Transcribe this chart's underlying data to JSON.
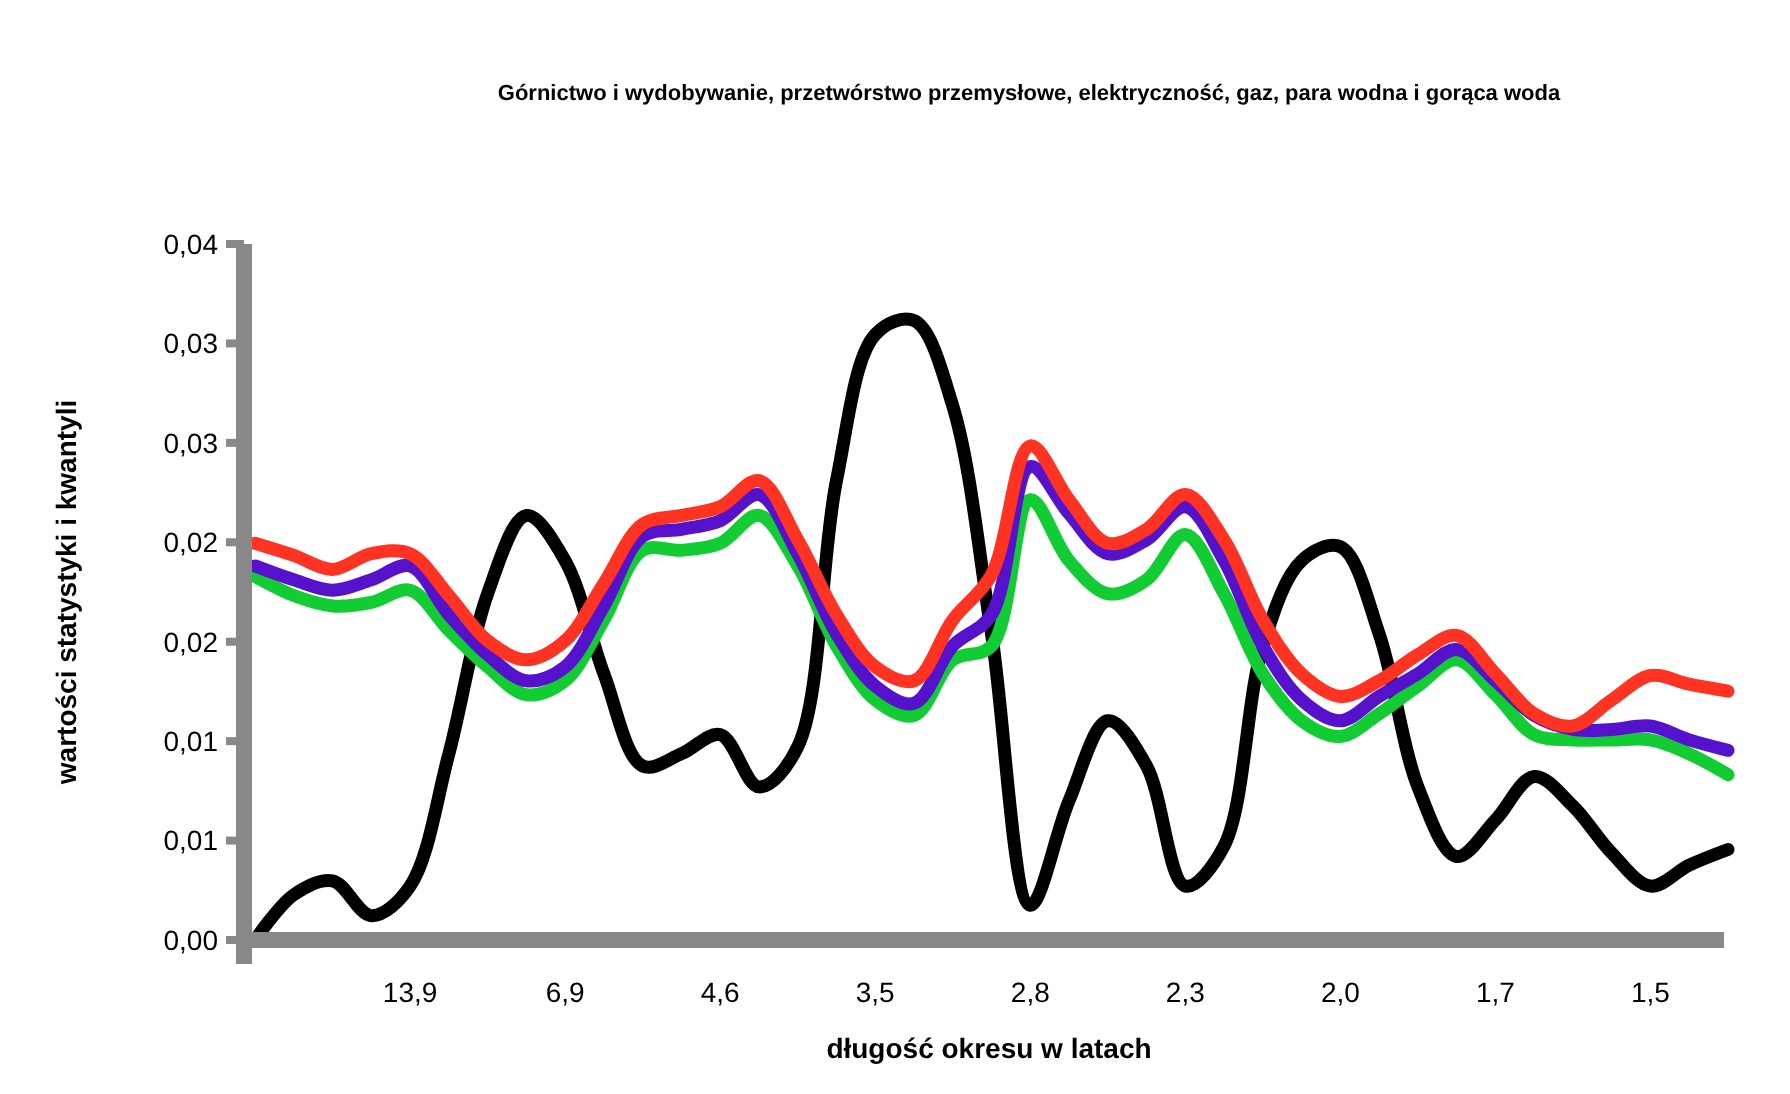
{
  "chart_data": {
    "type": "line",
    "title": "Górnictwo i wydobywanie, przetwórstwo przemysłowe, elektryczność, gaz, para wodna i gorąca woda",
    "xlabel": "długość okresu w latach",
    "ylabel": "wartości statystyki i kwantyli",
    "categories": [
      null,
      null,
      null,
      null,
      "13,9",
      null,
      null,
      null,
      "6,9",
      null,
      null,
      null,
      "4,6",
      null,
      null,
      null,
      "3,5",
      null,
      null,
      null,
      "2,8",
      null,
      null,
      null,
      "2,3",
      null,
      null,
      null,
      "2,0",
      null,
      null,
      null,
      "1,7",
      null,
      null,
      null,
      "1,5",
      null,
      null
    ],
    "series": [
      {
        "color": "#000000",
        "values": [
          0,
          0.0026,
          0.0034,
          0.0014,
          0.0031,
          0.0107,
          0.0199,
          0.0244,
          0.0218,
          0.0153,
          0.01,
          0.0107,
          0.0118,
          0.0088,
          0.0111,
          0.0264,
          0.0348,
          0.0356,
          0.0307,
          0.0176,
          0.002,
          0.008,
          0.0126,
          0.01,
          0.0031,
          0.0054,
          0.0169,
          0.0218,
          0.0226,
          0.0176,
          0.0088,
          0.0048,
          0.0069,
          0.0094,
          0.0077,
          0.005,
          0.0031,
          0.0043,
          0.0052
        ]
      },
      {
        "color": "#11cc33",
        "values": [
          0.0209,
          0.0198,
          0.0192,
          0.0194,
          0.0201,
          0.0178,
          0.0157,
          0.0141,
          0.0149,
          0.0184,
          0.0224,
          0.0224,
          0.0228,
          0.0244,
          0.0215,
          0.0169,
          0.0138,
          0.0129,
          0.0161,
          0.0169,
          0.0253,
          0.0218,
          0.0199,
          0.0207,
          0.0233,
          0.0199,
          0.0153,
          0.0126,
          0.0117,
          0.013,
          0.0146,
          0.0161,
          0.0141,
          0.0118,
          0.0115,
          0.0115,
          0.0115,
          0.0107,
          0.0095
        ]
      },
      {
        "color": "#5511cc",
        "values": [
          0.0215,
          0.0207,
          0.0201,
          0.0207,
          0.0215,
          0.0187,
          0.0164,
          0.0149,
          0.0157,
          0.0192,
          0.0232,
          0.0236,
          0.0241,
          0.0256,
          0.0222,
          0.0176,
          0.0146,
          0.0136,
          0.0169,
          0.0187,
          0.0272,
          0.0245,
          0.0222,
          0.023,
          0.0249,
          0.0218,
          0.0169,
          0.0138,
          0.0126,
          0.014,
          0.0153,
          0.0167,
          0.0149,
          0.0129,
          0.0121,
          0.0121,
          0.0123,
          0.0115,
          0.0109
        ]
      },
      {
        "color": "#ff3322",
        "values": [
          0.0228,
          0.0221,
          0.0213,
          0.0222,
          0.0222,
          0.0198,
          0.0172,
          0.0161,
          0.0172,
          0.0205,
          0.0239,
          0.0244,
          0.0249,
          0.0264,
          0.023,
          0.0187,
          0.0157,
          0.0149,
          0.0184,
          0.021,
          0.0284,
          0.0253,
          0.0228,
          0.0236,
          0.0256,
          0.023,
          0.0184,
          0.0153,
          0.014,
          0.0149,
          0.0164,
          0.0175,
          0.0153,
          0.013,
          0.0123,
          0.0138,
          0.0152,
          0.0147,
          0.0143
        ]
      }
    ],
    "ylim": [
      0,
      0.04
    ],
    "yticks": [
      {
        "value": 0,
        "label": "0,00"
      },
      {
        "value": 0.005714,
        "label": "0,01"
      },
      {
        "value": 0.011429,
        "label": "0,01"
      },
      {
        "value": 0.017143,
        "label": "0,02"
      },
      {
        "value": 0.022857,
        "label": "0,02"
      },
      {
        "value": 0.028571,
        "label": "0,03"
      },
      {
        "value": 0.034286,
        "label": "0,03"
      },
      {
        "value": 0.04,
        "label": "0,04"
      }
    ],
    "grid": false,
    "marker": "none",
    "line_style": "solid"
  }
}
